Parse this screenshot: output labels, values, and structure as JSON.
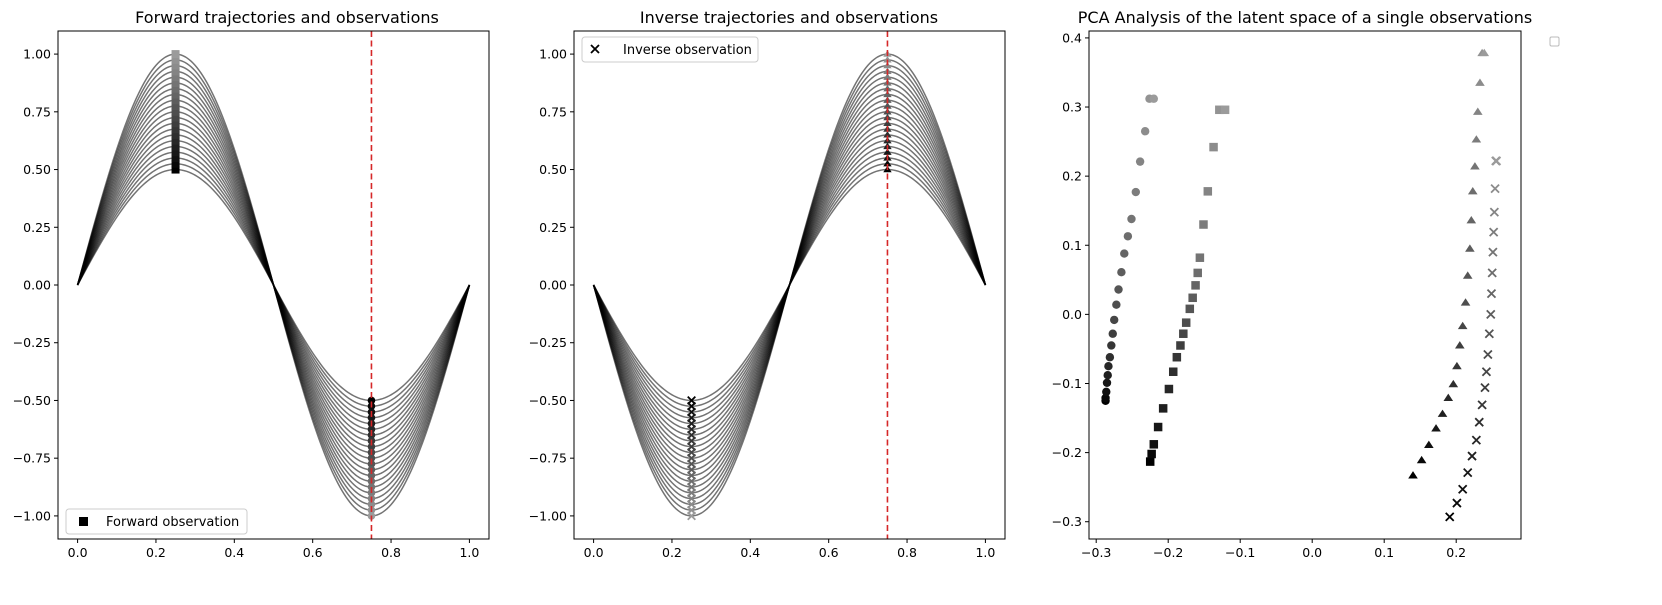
{
  "chart_data": [
    {
      "type": "line",
      "title": "Forward trajectories and observations",
      "xlim": [
        -0.05,
        1.05
      ],
      "ylim": [
        -1.1,
        1.1
      ],
      "xticks": [
        "0.0",
        "0.2",
        "0.4",
        "0.6",
        "0.8",
        "1.0"
      ],
      "yticks": [
        "1.00",
        "0.75",
        "0.50",
        "0.25",
        "0.00",
        "−0.25",
        "−0.50",
        "−0.75",
        "−1.00"
      ],
      "grid": false,
      "curve": "y = a · sin(2πx), x from 0 to 1",
      "amplitudes": [
        0.5,
        0.525,
        0.55,
        0.575,
        0.6,
        0.625,
        0.65,
        0.675,
        0.7,
        0.725,
        0.75,
        0.775,
        0.8,
        0.825,
        0.85,
        0.875,
        0.9,
        0.925,
        0.95,
        0.975,
        1.0
      ],
      "vline": {
        "x": 0.75,
        "color": "#d62728",
        "style": "dashed"
      },
      "observations": {
        "marker": "square",
        "x": [
          0.25
        ],
        "note": "one marker per trajectory at x=0.25; circles at x=0.75"
      },
      "legend": {
        "label": "Forward observation",
        "marker": "square",
        "location": "lower-left"
      }
    },
    {
      "type": "line",
      "title": "Inverse trajectories and observations",
      "xlim": [
        -0.05,
        1.05
      ],
      "ylim": [
        -1.1,
        1.1
      ],
      "xticks": [
        "0.0",
        "0.2",
        "0.4",
        "0.6",
        "0.8",
        "1.0"
      ],
      "yticks": [
        "1.00",
        "0.75",
        "0.50",
        "0.25",
        "0.00",
        "−0.25",
        "−0.50",
        "−0.75",
        "−1.00"
      ],
      "grid": false,
      "curve": "y = −a · sin(2πx), x from 0 to 1",
      "amplitudes": [
        0.5,
        0.525,
        0.55,
        0.575,
        0.6,
        0.625,
        0.65,
        0.675,
        0.7,
        0.725,
        0.75,
        0.775,
        0.8,
        0.825,
        0.85,
        0.875,
        0.9,
        0.925,
        0.95,
        0.975,
        1.0
      ],
      "vline": {
        "x": 0.75,
        "color": "#d62728",
        "style": "dashed"
      },
      "observations": {
        "marker": "x",
        "x": [
          0.25
        ],
        "note": "x markers at x=0.25; triangles at x=0.75"
      },
      "legend": {
        "label": "Inverse observation",
        "marker": "x",
        "location": "upper-left"
      }
    },
    {
      "type": "scatter",
      "title": "PCA Analysis of the latent space of a single observations",
      "xlim": [
        -0.31,
        0.29
      ],
      "ylim": [
        -0.325,
        0.41
      ],
      "xticks": [
        "−0.3",
        "−0.2",
        "−0.1",
        "0.0",
        "0.1",
        "0.2"
      ],
      "yticks": [
        "0.4",
        "0.3",
        "0.2",
        "0.1",
        "0.0",
        "−0.1",
        "−0.2",
        "−0.3"
      ],
      "grid": false,
      "legend": {
        "location": "outside-upper-right",
        "entries": []
      },
      "series": [
        {
          "marker": "circle",
          "x": [
            -0.287,
            -0.287,
            -0.286,
            -0.285,
            -0.284,
            -0.283,
            -0.281,
            -0.279,
            -0.277,
            -0.275,
            -0.272,
            -0.269,
            -0.265,
            -0.261,
            -0.256,
            -0.251,
            -0.245,
            -0.239,
            -0.232,
            -0.226,
            -0.22
          ],
          "y": [
            -0.125,
            -0.121,
            -0.112,
            -0.099,
            -0.088,
            -0.075,
            -0.062,
            -0.045,
            -0.028,
            -0.008,
            0.014,
            0.036,
            0.061,
            0.088,
            0.113,
            0.138,
            0.177,
            0.221,
            0.265,
            0.312,
            0.312
          ]
        },
        {
          "marker": "square",
          "x": [
            -0.225,
            -0.223,
            -0.22,
            -0.214,
            -0.207,
            -0.199,
            -0.193,
            -0.188,
            -0.183,
            -0.179,
            -0.175,
            -0.17,
            -0.166,
            -0.162,
            -0.159,
            -0.156,
            -0.151,
            -0.145,
            -0.137,
            -0.129,
            -0.121
          ],
          "y": [
            -0.213,
            -0.202,
            -0.188,
            -0.163,
            -0.136,
            -0.108,
            -0.083,
            -0.062,
            -0.045,
            -0.028,
            -0.012,
            0.008,
            0.024,
            0.042,
            0.06,
            0.082,
            0.13,
            0.178,
            0.242,
            0.296,
            0.296
          ]
        },
        {
          "marker": "triangle",
          "x": [
            0.14,
            0.152,
            0.162,
            0.172,
            0.181,
            0.189,
            0.196,
            0.201,
            0.205,
            0.209,
            0.213,
            0.216,
            0.219,
            0.221,
            0.223,
            0.226,
            0.228,
            0.23,
            0.233,
            0.236,
            0.239
          ],
          "y": [
            -0.233,
            -0.211,
            -0.189,
            -0.165,
            -0.144,
            -0.121,
            -0.101,
            -0.075,
            -0.045,
            -0.017,
            0.017,
            0.056,
            0.095,
            0.136,
            0.178,
            0.214,
            0.253,
            0.293,
            0.335,
            0.378,
            0.378
          ]
        },
        {
          "marker": "x",
          "x": [
            0.191,
            0.201,
            0.209,
            0.216,
            0.222,
            0.228,
            0.232,
            0.236,
            0.24,
            0.242,
            0.244,
            0.246,
            0.248,
            0.249,
            0.25,
            0.251,
            0.252,
            0.253,
            0.254,
            0.255,
            0.256
          ],
          "y": [
            -0.293,
            -0.273,
            -0.253,
            -0.229,
            -0.205,
            -0.182,
            -0.156,
            -0.131,
            -0.106,
            -0.083,
            -0.058,
            -0.028,
            0.0,
            0.03,
            0.06,
            0.09,
            0.119,
            0.148,
            0.182,
            0.222,
            0.222
          ]
        }
      ]
    }
  ]
}
